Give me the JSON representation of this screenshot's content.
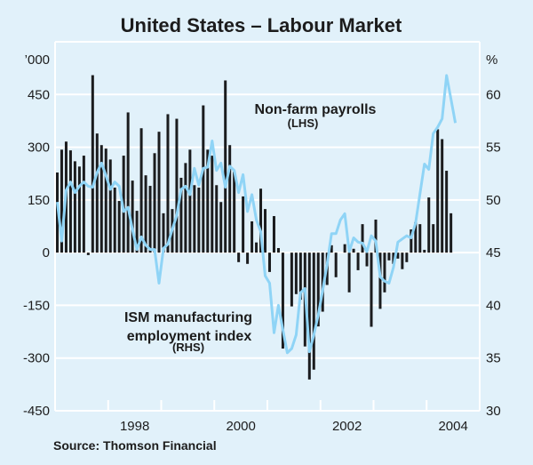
{
  "chart_data": {
    "type": "bar+line",
    "title": "United States – Labour Market",
    "source": "Source: Thomson Financial",
    "left_axis": {
      "unit_label": "’000",
      "range": [
        -450,
        600
      ],
      "ticks": [
        "450",
        "300",
        "150",
        "0",
        "-150",
        "-300",
        "-450"
      ],
      "tick_values": [
        450,
        300,
        150,
        0,
        -150,
        -300,
        -450
      ]
    },
    "right_axis": {
      "unit_label": "%",
      "range": [
        30,
        65
      ],
      "ticks": [
        "60",
        "55",
        "50",
        "45",
        "40",
        "35",
        "30"
      ],
      "tick_values": [
        60,
        55,
        50,
        45,
        40,
        35,
        30
      ]
    },
    "x_axis": {
      "unit": "months since Jan 1997",
      "range": [
        -0.5,
        95.5
      ],
      "year_boundaries": [
        11.5,
        23.5,
        35.5,
        47.5,
        59.5,
        71.5,
        83.5
      ],
      "labels": [
        {
          "text": "1998",
          "at": 17.5
        },
        {
          "text": "2000",
          "at": 41.5
        },
        {
          "text": "2002",
          "at": 65.5
        },
        {
          "text": "2004",
          "at": 89.5
        }
      ]
    },
    "grid": true,
    "series": [
      {
        "name": "Non-farm payrolls",
        "axis_note": "(LHS)",
        "type": "bar",
        "color": "#1b1c1e",
        "values": [
          228,
          293,
          316,
          291,
          260,
          245,
          276,
          -7,
          505,
          339,
          306,
          296,
          265,
          185,
          147,
          276,
          399,
          205,
          119,
          354,
          220,
          190,
          283,
          344,
          112,
          394,
          124,
          381,
          213,
          255,
          293,
          192,
          185,
          419,
          293,
          276,
          192,
          144,
          490,
          306,
          230,
          -27,
          160,
          -32,
          89,
          29,
          182,
          124,
          -55,
          104,
          13,
          -273,
          0,
          -153,
          -118,
          -134,
          -267,
          -361,
          -333,
          -210,
          -168,
          -92,
          21,
          -70,
          0,
          24,
          -113,
          11,
          -50,
          81,
          -39,
          -211,
          94,
          -160,
          -113,
          -22,
          -32,
          -17,
          -47,
          -27,
          66,
          87,
          81,
          8,
          157,
          81,
          351,
          323,
          233,
          112
        ]
      },
      {
        "name": "ISM manufacturing employment index",
        "name_line1": "ISM manufacturing",
        "name_line2": "employment index",
        "axis_note": "(RHS)",
        "type": "line",
        "color": "#8fd4f6",
        "values": [
          49.8,
          46.1,
          50.9,
          51.7,
          50.7,
          51.3,
          51.7,
          51.3,
          51.2,
          52.6,
          53.5,
          52.3,
          51.0,
          51.7,
          51.3,
          48.9,
          49.3,
          47.2,
          45.3,
          46.5,
          45.7,
          45.3,
          45.3,
          42.1,
          45.4,
          45.8,
          47.2,
          48.5,
          51.0,
          51.3,
          50.5,
          53.0,
          51.4,
          53.0,
          53.1,
          55.6,
          52.8,
          53.5,
          51.2,
          53.2,
          52.8,
          50.7,
          52.4,
          48.9,
          50.5,
          48.1,
          47.0,
          42.8,
          42.1,
          37.4,
          40.0,
          37.7,
          35.5,
          35.9,
          37.2,
          41.2,
          41.6,
          35.6,
          37.2,
          39.1,
          41.4,
          43.9,
          46.8,
          46.8,
          48.1,
          48.7,
          45.1,
          46.4,
          46.0,
          45.9,
          45.1,
          46.6,
          46.1,
          42.7,
          42.3,
          42.1,
          43.6,
          46.0,
          46.3,
          46.6,
          46.4,
          47.8,
          50.6,
          53.4,
          52.9,
          56.3,
          56.9,
          57.7,
          61.8,
          59.6,
          57.3
        ]
      }
    ]
  }
}
